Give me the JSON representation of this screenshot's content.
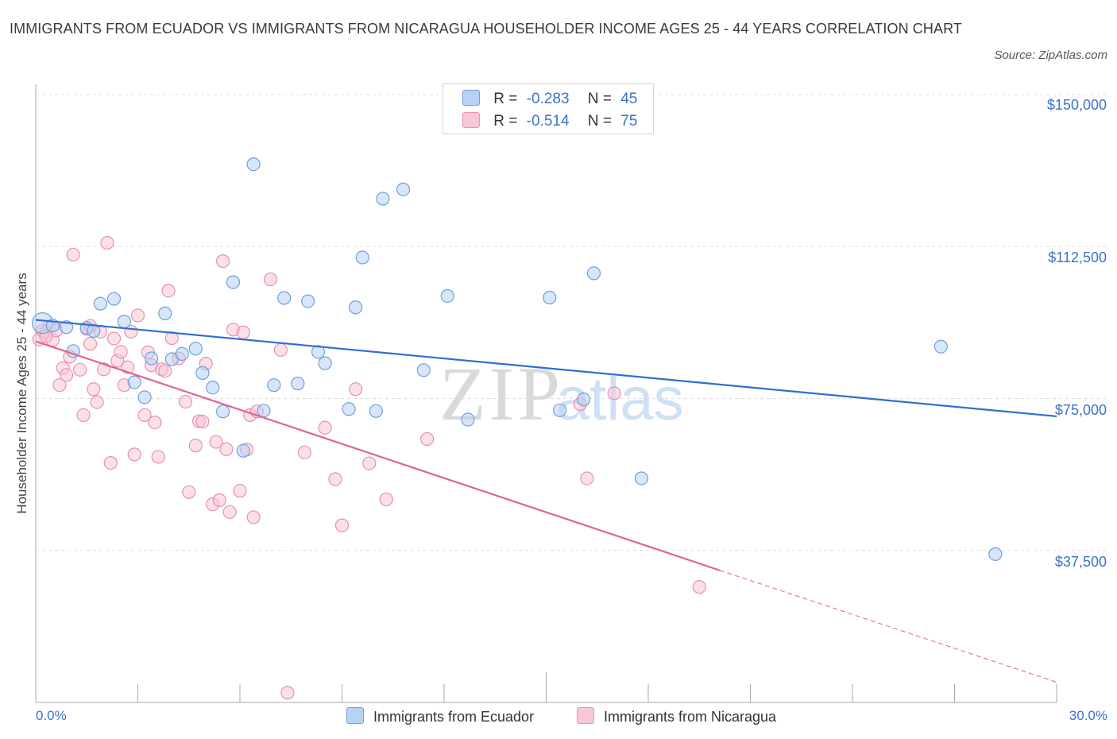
{
  "title": "IMMIGRANTS FROM ECUADOR VS IMMIGRANTS FROM NICARAGUA HOUSEHOLDER INCOME AGES 25 - 44 YEARS CORRELATION CHART",
  "source": "Source: ZipAtlas.com",
  "watermark": {
    "zip": "ZIP",
    "atlas": "atlas"
  },
  "legend": {
    "ecuador": {
      "r_label": "R =",
      "r_value": "-0.283",
      "n_label": "N =",
      "n_value": "45"
    },
    "nicaragua": {
      "r_label": "R =",
      "r_value": "-0.514",
      "n_label": "N =",
      "n_value": "75"
    }
  },
  "colors": {
    "ecuador_fill": "#b8d2f4",
    "ecuador_stroke": "#6f9fdc",
    "ecuador_line": "#2f6fd1",
    "nicaragua_fill": "#f8c6d6",
    "nicaragua_stroke": "#e592ae",
    "nicaragua_line": "#e0638f",
    "axis_text": "#3b73c9",
    "grid": "#dddddd"
  },
  "chart_data": {
    "type": "scatter",
    "title": "IMMIGRANTS FROM ECUADOR VS IMMIGRANTS FROM NICARAGUA HOUSEHOLDER INCOME AGES 25 - 44 YEARS CORRELATION CHART",
    "xlabel": "",
    "ylabel": "Householder Income Ages 25 - 44 years",
    "xlim": [
      0,
      30
    ],
    "ylim": [
      0,
      150000
    ],
    "x_tick_labels": [
      "0.0%",
      "30.0%"
    ],
    "y_ticks": [
      37500,
      75000,
      112500,
      150000
    ],
    "y_tick_labels": [
      "$37,500",
      "$75,000",
      "$112,500",
      "$150,000"
    ],
    "grid": "horizontal dashed",
    "legend_position": "top-center",
    "series": [
      {
        "name": "Immigrants from Ecuador",
        "r": -0.283,
        "n": 45,
        "trend": {
          "x": [
            0,
            30
          ],
          "y": [
            94400,
            70600
          ]
        },
        "points": [
          [
            0.2,
            93600
          ],
          [
            0.5,
            93000
          ],
          [
            0.9,
            92600
          ],
          [
            1.5,
            92400
          ],
          [
            1.7,
            91700
          ],
          [
            1.1,
            86700
          ],
          [
            1.9,
            98400
          ],
          [
            2.3,
            99600
          ],
          [
            2.6,
            94000
          ],
          [
            2.9,
            79000
          ],
          [
            3.2,
            75300
          ],
          [
            3.4,
            84900
          ],
          [
            3.8,
            96000
          ],
          [
            4.0,
            84700
          ],
          [
            4.3,
            86000
          ],
          [
            4.7,
            87300
          ],
          [
            4.9,
            81300
          ],
          [
            5.2,
            77700
          ],
          [
            5.5,
            71800
          ],
          [
            5.8,
            103700
          ],
          [
            6.1,
            62100
          ],
          [
            6.4,
            132800
          ],
          [
            6.7,
            72000
          ],
          [
            7.0,
            78300
          ],
          [
            7.3,
            99800
          ],
          [
            7.7,
            78700
          ],
          [
            8.0,
            99000
          ],
          [
            8.3,
            86500
          ],
          [
            8.5,
            83700
          ],
          [
            9.2,
            72400
          ],
          [
            9.4,
            97500
          ],
          [
            9.6,
            109800
          ],
          [
            10.0,
            71900
          ],
          [
            10.2,
            124300
          ],
          [
            10.8,
            126600
          ],
          [
            11.4,
            82000
          ],
          [
            12.1,
            100300
          ],
          [
            12.7,
            69800
          ],
          [
            15.1,
            99900
          ],
          [
            15.4,
            72100
          ],
          [
            16.1,
            74800
          ],
          [
            16.4,
            105900
          ],
          [
            17.8,
            55300
          ],
          [
            26.6,
            87800
          ],
          [
            28.2,
            36600
          ]
        ]
      },
      {
        "name": "Immigrants from Nicaragua",
        "r": -0.514,
        "n": 75,
        "trend": {
          "x": [
            0,
            20.1
          ],
          "y": [
            89100,
            32600
          ]
        },
        "trend_dashed": {
          "x": [
            20.1,
            30
          ],
          "y": [
            32600,
            5000
          ]
        },
        "points": [
          [
            0.1,
            89600
          ],
          [
            0.2,
            91700
          ],
          [
            0.3,
            91300
          ],
          [
            0.4,
            92700
          ],
          [
            0.5,
            89400
          ],
          [
            0.6,
            91800
          ],
          [
            0.7,
            78300
          ],
          [
            0.8,
            82500
          ],
          [
            0.9,
            80800
          ],
          [
            1.0,
            85300
          ],
          [
            1.1,
            110500
          ],
          [
            1.3,
            82100
          ],
          [
            1.4,
            70900
          ],
          [
            1.5,
            92200
          ],
          [
            1.6,
            88500
          ],
          [
            1.7,
            77300
          ],
          [
            1.8,
            74100
          ],
          [
            1.9,
            91500
          ],
          [
            2.0,
            82200
          ],
          [
            2.1,
            113400
          ],
          [
            2.2,
            59100
          ],
          [
            2.3,
            89800
          ],
          [
            2.4,
            84300
          ],
          [
            2.5,
            86500
          ],
          [
            2.6,
            78300
          ],
          [
            2.7,
            82700
          ],
          [
            2.8,
            91500
          ],
          [
            2.9,
            61200
          ],
          [
            3.0,
            95500
          ],
          [
            3.2,
            70900
          ],
          [
            3.3,
            86400
          ],
          [
            3.4,
            83200
          ],
          [
            3.5,
            69100
          ],
          [
            3.6,
            60600
          ],
          [
            3.7,
            82200
          ],
          [
            3.8,
            81800
          ],
          [
            3.9,
            101600
          ],
          [
            4.0,
            89900
          ],
          [
            4.2,
            84900
          ],
          [
            4.4,
            74200
          ],
          [
            4.5,
            51900
          ],
          [
            4.7,
            63400
          ],
          [
            4.8,
            69400
          ],
          [
            4.9,
            69300
          ],
          [
            5.0,
            83600
          ],
          [
            5.2,
            48900
          ],
          [
            5.3,
            64300
          ],
          [
            5.4,
            49900
          ],
          [
            5.5,
            108900
          ],
          [
            5.6,
            62500
          ],
          [
            5.7,
            47000
          ],
          [
            5.8,
            92000
          ],
          [
            6.0,
            52200
          ],
          [
            6.1,
            91300
          ],
          [
            6.2,
            62400
          ],
          [
            6.3,
            70900
          ],
          [
            6.4,
            45700
          ],
          [
            6.5,
            71800
          ],
          [
            6.9,
            104400
          ],
          [
            7.2,
            87000
          ],
          [
            7.4,
            2400
          ],
          [
            7.9,
            61700
          ],
          [
            8.5,
            67800
          ],
          [
            8.8,
            55100
          ],
          [
            9.0,
            43700
          ],
          [
            9.4,
            77300
          ],
          [
            9.8,
            59000
          ],
          [
            10.3,
            50100
          ],
          [
            11.5,
            65000
          ],
          [
            16.2,
            55300
          ],
          [
            17.0,
            76300
          ],
          [
            16.0,
            73600
          ],
          [
            19.5,
            28500
          ],
          [
            1.6,
            92900
          ],
          [
            0.3,
            90400
          ]
        ]
      }
    ]
  },
  "bottom_legend": {
    "ecuador": "Immigrants from Ecuador",
    "nicaragua": "Immigrants from Nicaragua"
  }
}
